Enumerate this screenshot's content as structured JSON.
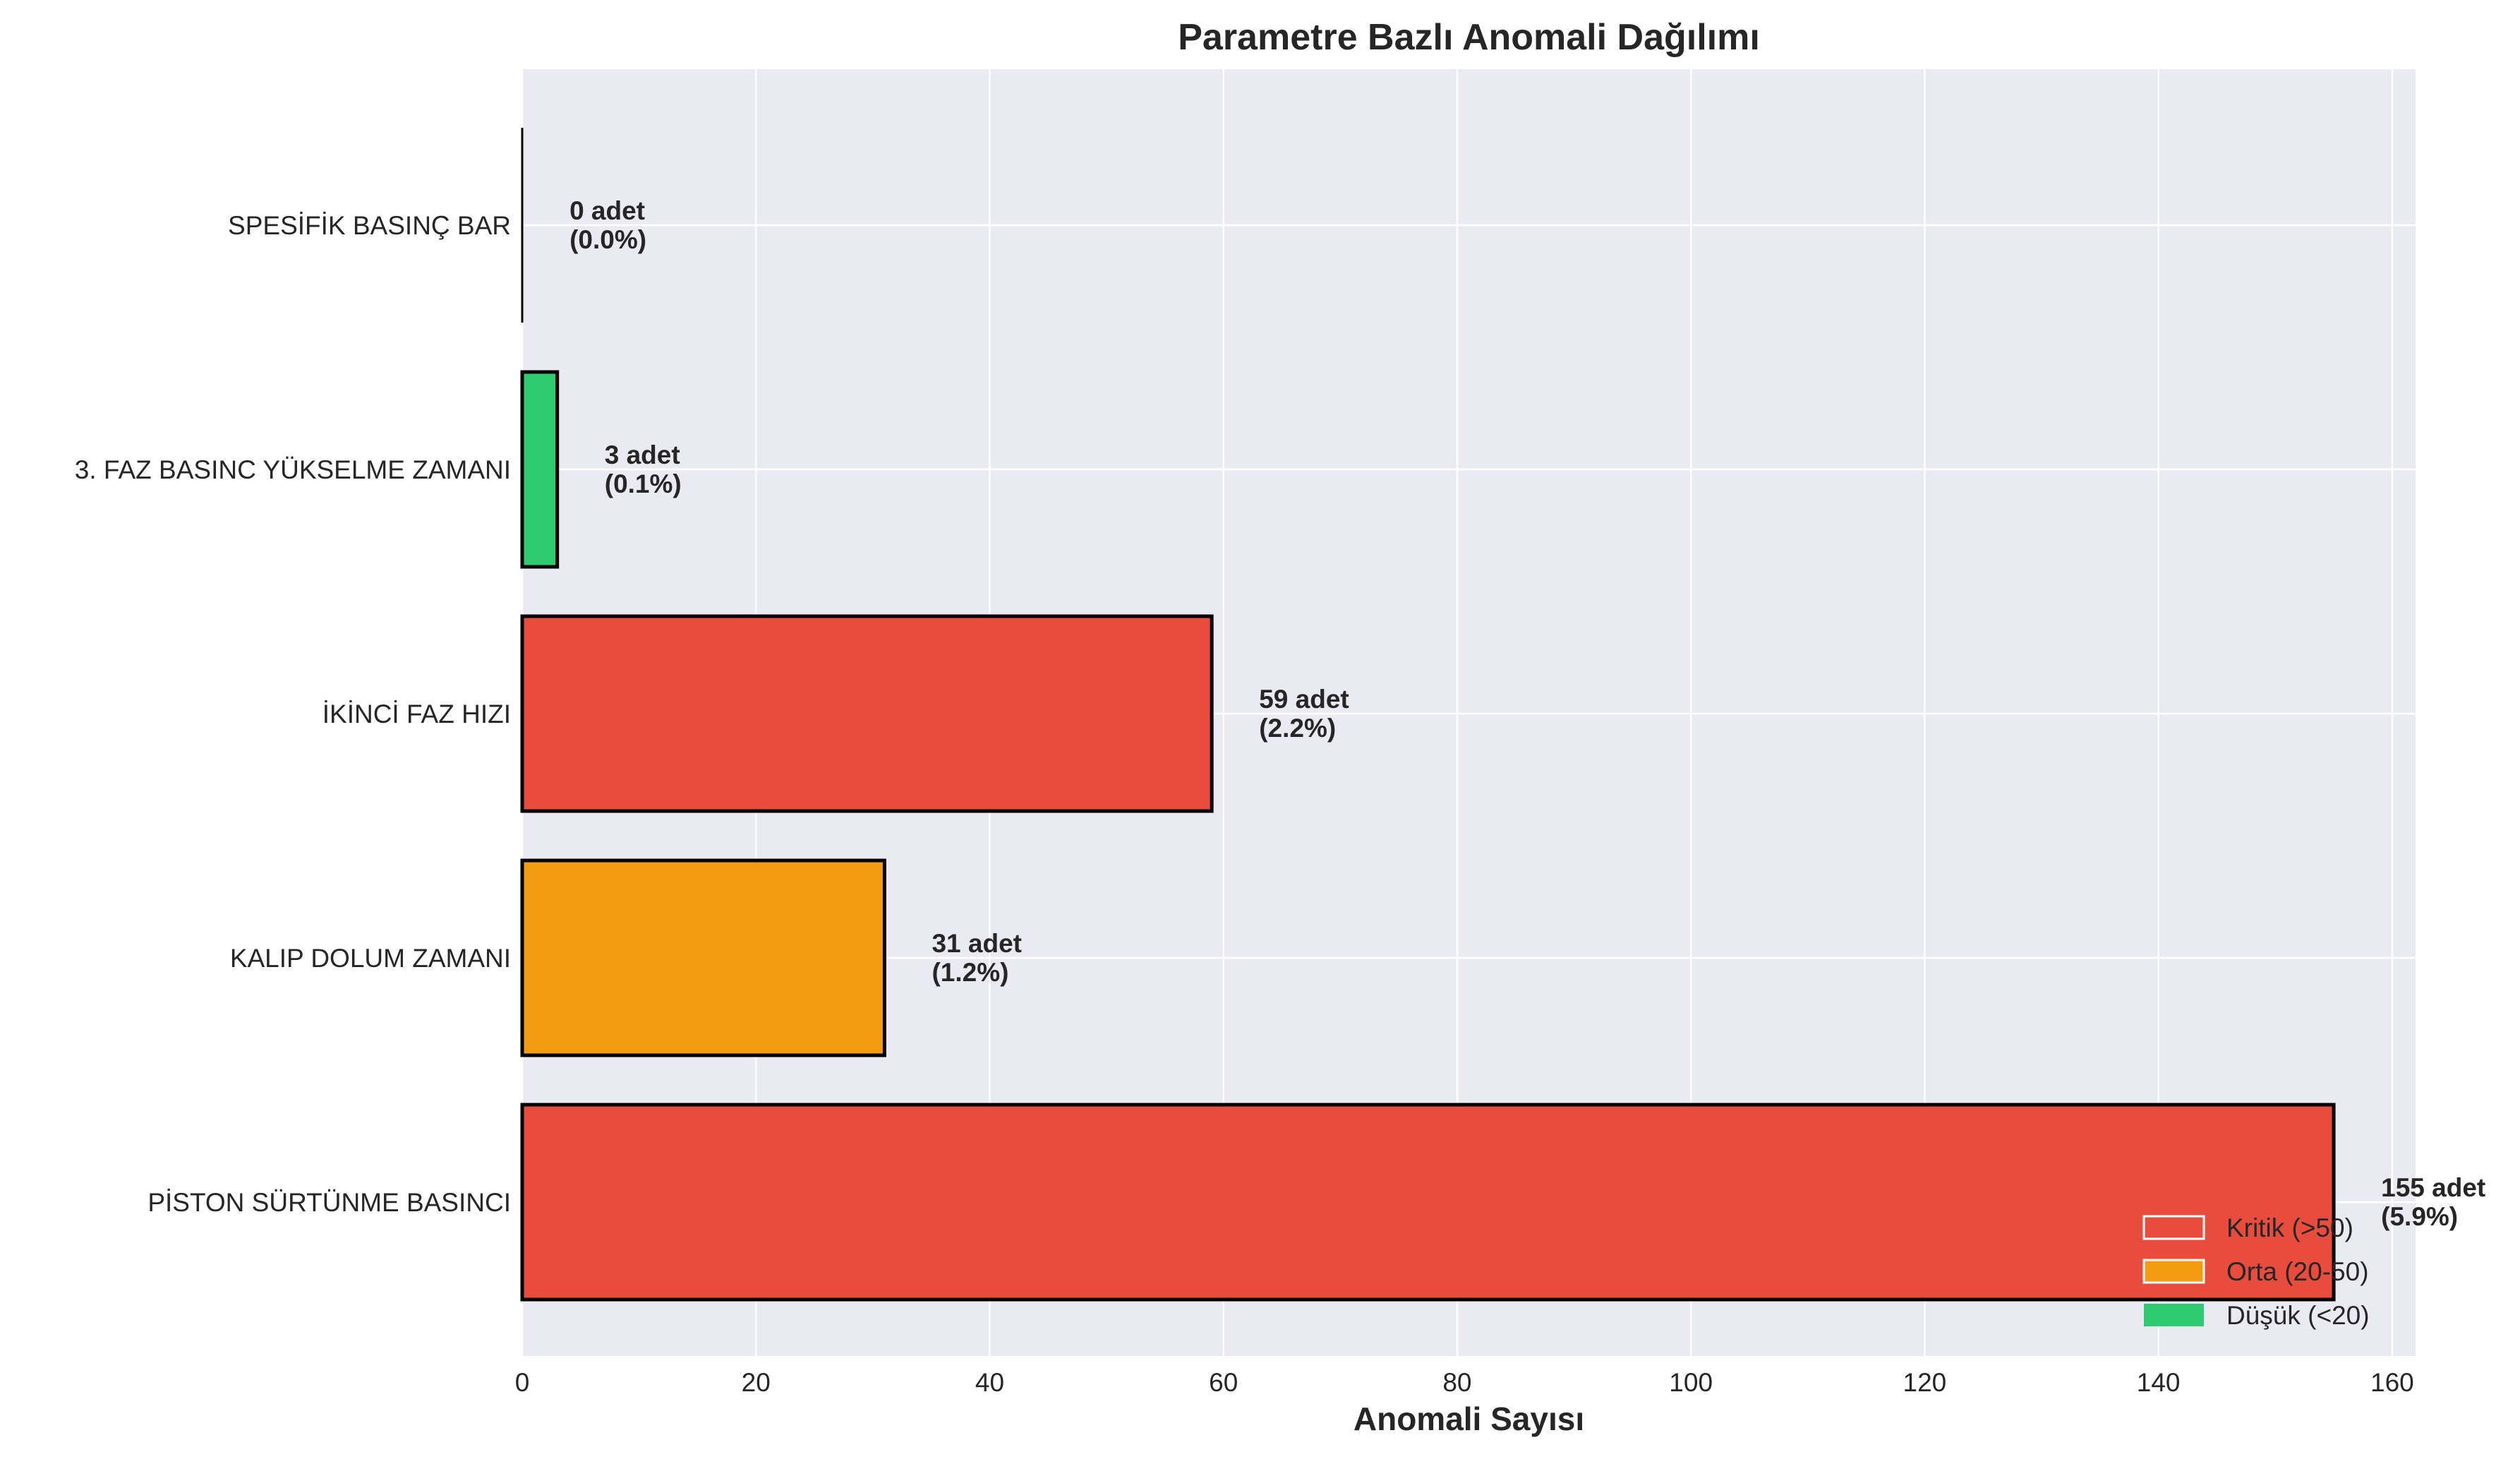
{
  "chart_data": {
    "type": "bar",
    "orientation": "horizontal",
    "title": "Parametre Bazlı Anomali Dağılımı",
    "xlabel": "Anomali Sayısı",
    "ylabel": "",
    "xlim": [
      0,
      162
    ],
    "xticks": [
      0,
      20,
      40,
      60,
      80,
      100,
      120,
      140,
      160
    ],
    "grid": true,
    "legend_position": "bottom-right",
    "categories": [
      "SPESİFİK BASINÇ BAR",
      "3. FAZ BASINC YÜKSELME ZAMANI",
      "İKİNCİ FAZ HIZI",
      "KALIP DOLUM ZAMANI",
      "PİSTON SÜRTÜNME BASINCI"
    ],
    "values": [
      0,
      3,
      59,
      31,
      155
    ],
    "bar_labels": [
      [
        "0 adet",
        "(0.0%)"
      ],
      [
        "3 adet",
        "(0.1%)"
      ],
      [
        "59 adet",
        "(2.2%)"
      ],
      [
        "31 adet",
        "(1.2%)"
      ],
      [
        "155 adet",
        "(5.9%)"
      ]
    ],
    "bar_levels": [
      "low",
      "low",
      "critical",
      "medium",
      "critical"
    ],
    "colors": {
      "critical": "#e74c3c",
      "medium": "#f39c12",
      "low": "#2ecc71",
      "background": "#eaeaf2",
      "grid": "#ffffff",
      "bar_edge": "#000000"
    },
    "legend": [
      {
        "label": "Kritik (>50)",
        "level": "critical"
      },
      {
        "label": "Orta (20-50)",
        "level": "medium"
      },
      {
        "label": "Düşük (<20)",
        "level": "low"
      }
    ]
  }
}
